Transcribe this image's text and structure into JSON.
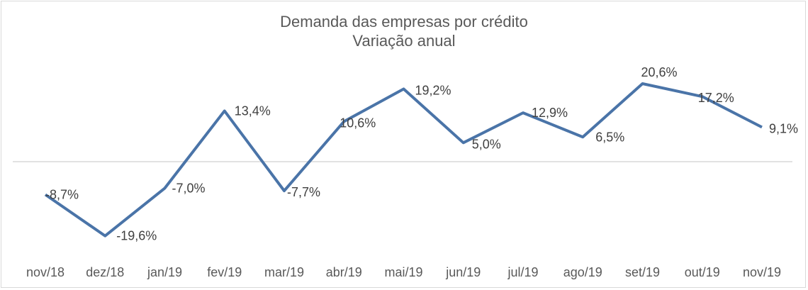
{
  "chart_data": {
    "type": "line",
    "title": "Demanda das empresas por crédito",
    "subtitle": "Variação anual",
    "xlabel": "",
    "ylabel": "",
    "categories": [
      "nov/18",
      "dez/18",
      "jan/19",
      "fev/19",
      "mar/19",
      "abr/19",
      "mai/19",
      "jun/19",
      "jul/19",
      "ago/19",
      "set/19",
      "out/19",
      "nov/19"
    ],
    "series": [
      {
        "name": "Demanda das empresas por crédito",
        "values": [
          -8.7,
          -19.6,
          -7.0,
          13.4,
          -7.7,
          10.6,
          19.2,
          5.0,
          12.9,
          6.5,
          20.6,
          17.2,
          9.1
        ],
        "labels": [
          "-8,7%",
          "-19,6%",
          "-7,0%",
          "13,4%",
          "-7,7%",
          "10,6%",
          "19,2%",
          "5,0%",
          "12,9%",
          "6,5%",
          "20,6%",
          "17,2%",
          "9,1%"
        ],
        "color": "#4a74a8"
      }
    ],
    "ylim": [
      -20.6,
      20.6
    ],
    "grid": false,
    "zero_line": true,
    "legend": "none",
    "zero_line_color": "#d9d9d9",
    "text_color": "#595959"
  }
}
